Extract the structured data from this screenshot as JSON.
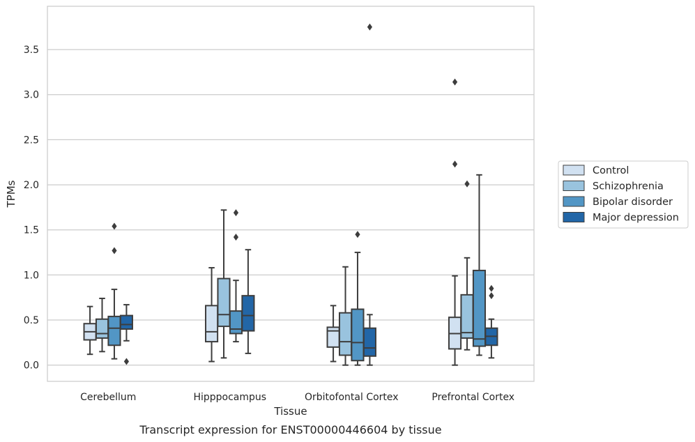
{
  "chart_data": {
    "type": "box",
    "caption": "Transcript expression for ENST00000446604 by tissue",
    "xlabel": "Tissue",
    "ylabel": "TPMs",
    "ylim": [
      -0.18,
      3.98
    ],
    "yticks": [
      0.0,
      0.5,
      1.0,
      1.5,
      2.0,
      2.5,
      3.0,
      3.5
    ],
    "ytick_labels": [
      "0.0",
      "0.5",
      "1.0",
      "1.5",
      "2.0",
      "2.5",
      "3.0",
      "3.5"
    ],
    "grid": "horizontal",
    "legend_position": "right",
    "categories": [
      "Cerebellum",
      "Hipppocampus",
      "Orbitofontal Cortex",
      "Prefrontal Cortex"
    ],
    "series": [
      {
        "name": "Control",
        "color": "#d1e1f1",
        "boxes": [
          {
            "whislo": 0.12,
            "q1": 0.28,
            "med": 0.37,
            "q3": 0.46,
            "whishi": 0.65,
            "fliers": []
          },
          {
            "whislo": 0.04,
            "q1": 0.26,
            "med": 0.37,
            "q3": 0.66,
            "whishi": 1.08,
            "fliers": []
          },
          {
            "whislo": 0.04,
            "q1": 0.2,
            "med": 0.38,
            "q3": 0.42,
            "whishi": 0.66,
            "fliers": []
          },
          {
            "whislo": 0.0,
            "q1": 0.18,
            "med": 0.35,
            "q3": 0.53,
            "whishi": 0.99,
            "fliers": [
              2.23,
              3.14
            ]
          }
        ]
      },
      {
        "name": "Schizophrenia",
        "color": "#99c3de",
        "boxes": [
          {
            "whislo": 0.15,
            "q1": 0.3,
            "med": 0.35,
            "q3": 0.51,
            "whishi": 0.74,
            "fliers": []
          },
          {
            "whislo": 0.08,
            "q1": 0.43,
            "med": 0.56,
            "q3": 0.96,
            "whishi": 1.72,
            "fliers": []
          },
          {
            "whislo": 0.0,
            "q1": 0.11,
            "med": 0.26,
            "q3": 0.58,
            "whishi": 1.09,
            "fliers": []
          },
          {
            "whislo": 0.17,
            "q1": 0.3,
            "med": 0.36,
            "q3": 0.78,
            "whishi": 1.19,
            "fliers": [
              2.01
            ]
          }
        ]
      },
      {
        "name": "Bipolar disorder",
        "color": "#5296c5",
        "boxes": [
          {
            "whislo": 0.07,
            "q1": 0.22,
            "med": 0.41,
            "q3": 0.54,
            "whishi": 0.84,
            "fliers": [
              1.27,
              1.54
            ]
          },
          {
            "whislo": 0.26,
            "q1": 0.35,
            "med": 0.4,
            "q3": 0.6,
            "whishi": 0.94,
            "fliers": [
              1.42,
              1.69
            ]
          },
          {
            "whislo": 0.0,
            "q1": 0.05,
            "med": 0.25,
            "q3": 0.62,
            "whishi": 1.25,
            "fliers": [
              1.45
            ]
          },
          {
            "whislo": 0.11,
            "q1": 0.21,
            "med": 0.29,
            "q3": 1.05,
            "whishi": 2.11,
            "fliers": []
          }
        ]
      },
      {
        "name": "Major depression",
        "color": "#2266a7",
        "boxes": [
          {
            "whislo": 0.27,
            "q1": 0.4,
            "med": 0.45,
            "q3": 0.55,
            "whishi": 0.67,
            "fliers": [
              0.04
            ]
          },
          {
            "whislo": 0.13,
            "q1": 0.38,
            "med": 0.55,
            "q3": 0.77,
            "whishi": 1.28,
            "fliers": []
          },
          {
            "whislo": 0.0,
            "q1": 0.1,
            "med": 0.19,
            "q3": 0.41,
            "whishi": 0.56,
            "fliers": [
              3.75
            ]
          },
          {
            "whislo": 0.08,
            "q1": 0.22,
            "med": 0.32,
            "q3": 0.41,
            "whishi": 0.51,
            "fliers": [
              0.77,
              0.85
            ]
          }
        ]
      }
    ]
  }
}
